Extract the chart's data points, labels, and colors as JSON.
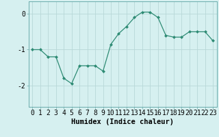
{
  "x": [
    0,
    1,
    2,
    3,
    4,
    5,
    6,
    7,
    8,
    9,
    10,
    11,
    12,
    13,
    14,
    15,
    16,
    17,
    18,
    19,
    20,
    21,
    22,
    23
  ],
  "y": [
    -1.0,
    -1.0,
    -1.2,
    -1.2,
    -1.8,
    -1.95,
    -1.45,
    -1.45,
    -1.45,
    -1.6,
    -0.85,
    -0.55,
    -0.35,
    -0.1,
    0.05,
    0.05,
    -0.1,
    -0.6,
    -0.65,
    -0.65,
    -0.5,
    -0.5,
    -0.5,
    -0.75
  ],
  "line_color": "#2e8b74",
  "marker": "D",
  "marker_size": 2,
  "bg_color": "#d6f0f0",
  "grid_color": "#b8d8d8",
  "xlabel": "Humidex (Indice chaleur)",
  "yticks": [
    -2,
    -1,
    0
  ],
  "ytick_labels": [
    "-2",
    "-1",
    "0"
  ],
  "xlim": [
    -0.5,
    23.5
  ],
  "ylim": [
    -2.6,
    0.35
  ],
  "xlabel_fontsize": 7.5,
  "tick_fontsize": 7
}
